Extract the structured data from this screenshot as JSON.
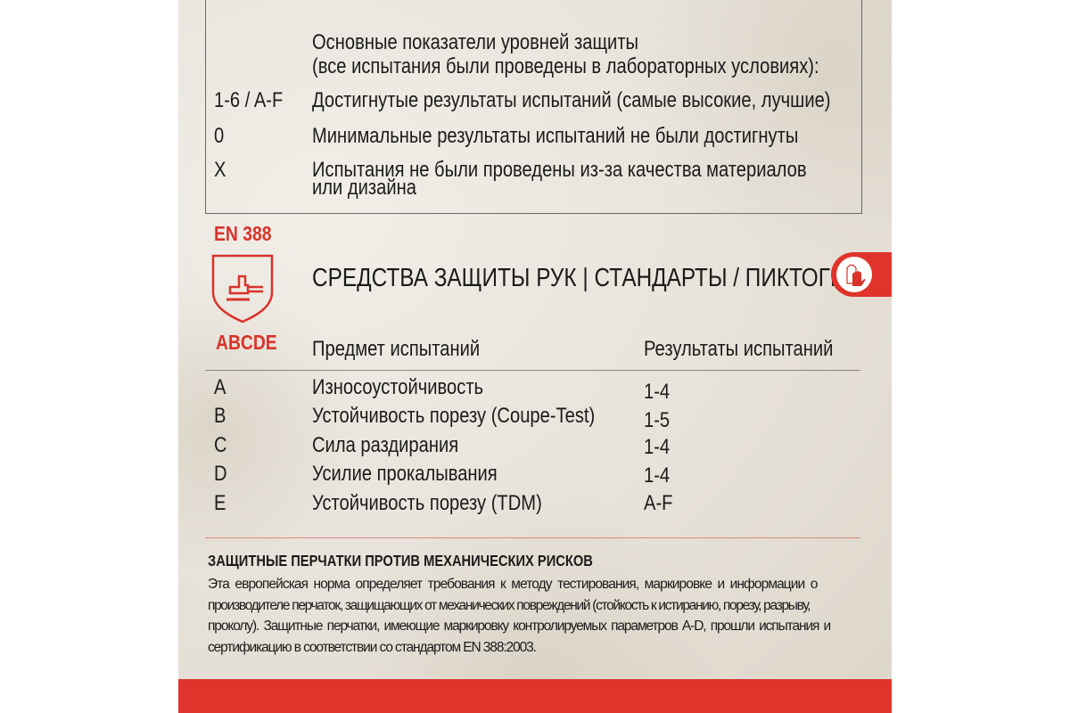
{
  "legend_box": {
    "heading_line1": "Основные показатели уровней защиты",
    "heading_line2": "(все испытания были проведены в лабораторных условиях):",
    "rows": [
      {
        "code": "1-6 / A-F",
        "text": "Достигнутые результаты испытаний (самые высокие, лучшие)"
      },
      {
        "code": "0",
        "text": "Минимальные результаты испытаний не были достигнуты"
      },
      {
        "code": "X",
        "text": "Испытания не были проведены из-за качества материалов",
        "text2": "или дизайна"
      }
    ]
  },
  "standard": {
    "name": "EN 388",
    "letters": "ABCDE",
    "icon": "shield-hammer-icon",
    "title": "СРЕДСТВА ЗАЩИТЫ РУК | СТАНДАРТЫ / ПИКТОГРАММЫ",
    "badge_icon": "gloves-icon"
  },
  "table": {
    "headers": [
      "Предмет испытаний",
      "Результаты испытаний"
    ],
    "rows": [
      {
        "letter": "A",
        "subject": "Износоустойчивость",
        "result": "1-4"
      },
      {
        "letter": "B",
        "subject": "Устойчивость порезу (Coupe-Test)",
        "result": "1-5"
      },
      {
        "letter": "C",
        "subject": "Сила раздирания",
        "result": "1-4"
      },
      {
        "letter": "D",
        "subject": "Усилие прокалывания",
        "result": "1-4"
      },
      {
        "letter": "E",
        "subject": "Устойчивость порезу (TDM)",
        "result": "A-F"
      }
    ]
  },
  "description": {
    "title": "ЗАЩИТНЫЕ ПЕРЧАТКИ ПРОТИВ МЕХАНИЧЕСКИХ РИСКОВ",
    "lines": [
      "Эта европейская норма определяет требования к методу тестирования, маркировке и информации о",
      "производителе перчаток, защищающих от механических повреждений (стойкость к истиранию, порезу, разрыву,",
      "проколу). Защитные перчатки, имеющие маркировку контролируемых параметров A-D, прошли испытания и",
      "сертификацию в соответствии со стандартом EN 388:2003."
    ]
  },
  "colors": {
    "accent": "#e0332b",
    "background": "#e8e3da"
  }
}
